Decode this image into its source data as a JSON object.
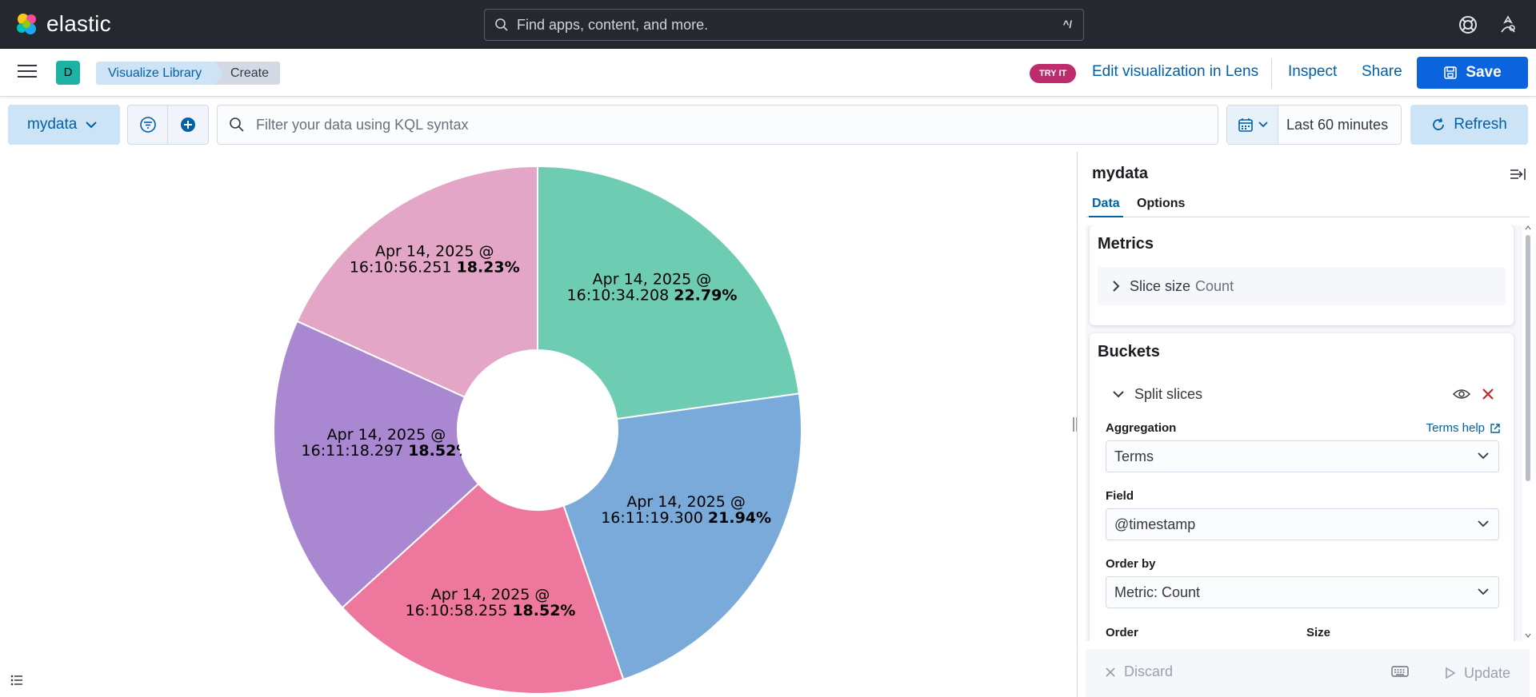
{
  "header": {
    "brand": "elastic",
    "search_placeholder": "Find apps, content, and more.",
    "search_shortcut": "^/"
  },
  "appbar": {
    "space_initial": "D",
    "breadcrumbs": [
      "Visualize Library",
      "Create"
    ],
    "try_it_badge": "TRY IT",
    "lens_link": "Edit visualization in Lens",
    "inspect": "Inspect",
    "share": "Share",
    "save": "Save"
  },
  "querybar": {
    "data_view": "mydata",
    "kql_placeholder": "Filter your data using KQL syntax",
    "time_range": "Last 60 minutes",
    "refresh": "Refresh"
  },
  "chart_data": {
    "type": "pie",
    "donut": true,
    "title": "",
    "slices": [
      {
        "label": "Apr 14, 2025 @ 16:10:34.208",
        "percent": "22.79%",
        "value": 22.79,
        "color": "#6dccb1"
      },
      {
        "label": "Apr 14, 2025 @ 16:11:19.300",
        "percent": "21.94%",
        "value": 21.94,
        "color": "#79aad9"
      },
      {
        "label": "Apr 14, 2025 @ 16:10:58.255",
        "percent": "18.52%",
        "value": 18.52,
        "color": "#ee789d"
      },
      {
        "label": "Apr 14, 2025 @ 16:11:18.297",
        "percent": "18.52%",
        "value": 18.52,
        "color": "#a987d1"
      },
      {
        "label": "Apr 14, 2025 @ 16:10:56.251",
        "percent": "18.23%",
        "value": 18.23,
        "color": "#e4a6c7"
      }
    ]
  },
  "panel": {
    "title": "mydata",
    "tabs": [
      "Data",
      "Options"
    ],
    "metrics": {
      "heading": "Metrics",
      "item_label": "Slice size",
      "item_value": "Count"
    },
    "buckets": {
      "heading": "Buckets",
      "item_label": "Split slices",
      "aggregation_label": "Aggregation",
      "terms_help": "Terms help",
      "aggregation_value": "Terms",
      "field_label": "Field",
      "field_value": "@timestamp",
      "order_by_label": "Order by",
      "order_by_value": "Metric: Count",
      "order_label": "Order",
      "size_label": "Size"
    },
    "footer": {
      "discard": "Discard",
      "update": "Update"
    }
  }
}
